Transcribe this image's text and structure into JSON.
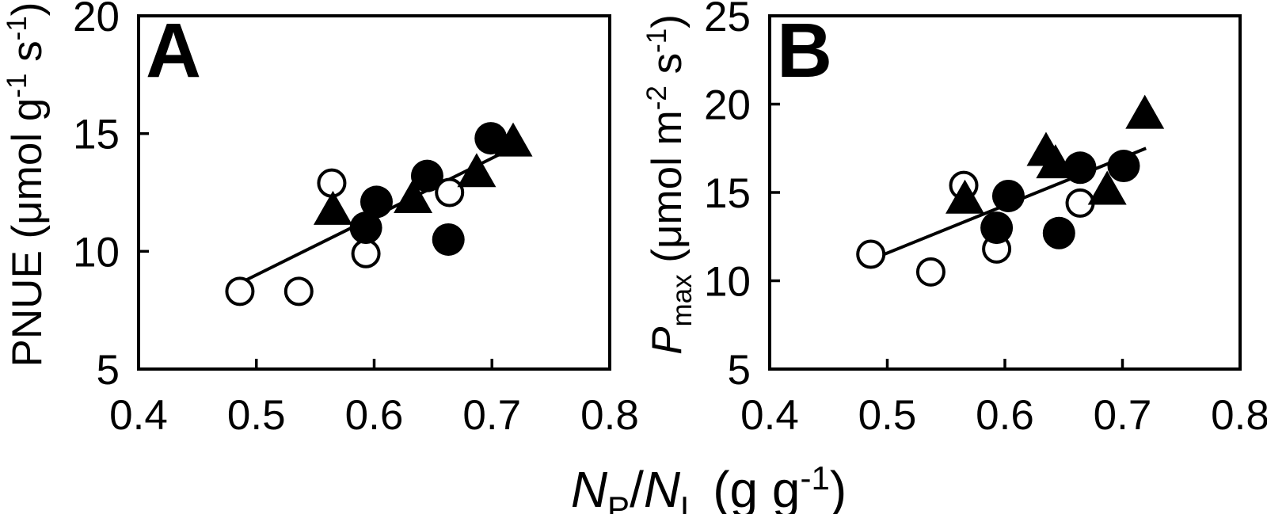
{
  "figure": {
    "colors": {
      "ink": "#000000",
      "background": "#ffffff"
    }
  },
  "xlabel": {
    "plain": "NP/NL (g g-1)",
    "parts": [
      {
        "t": "N",
        "style": "italic"
      },
      {
        "t": "P",
        "pos": "sub"
      },
      {
        "t": "/"
      },
      {
        "t": "N",
        "style": "italic"
      },
      {
        "t": "L",
        "pos": "sub"
      },
      {
        "t": " (g g"
      },
      {
        "t": "-1",
        "pos": "sup"
      },
      {
        "t": ")"
      }
    ]
  },
  "chart_data": [
    {
      "type": "scatter",
      "panel": "A",
      "label": "A",
      "ylabel": {
        "plain": "PNUE (μmol g-1 s-1)",
        "parts": [
          {
            "t": "PNUE (μmol g"
          },
          {
            "t": "-1",
            "pos": "sup"
          },
          {
            "t": " s"
          },
          {
            "t": "-1",
            "pos": "sup"
          },
          {
            "t": ")"
          }
        ]
      },
      "xlim": [
        0.4,
        0.8
      ],
      "ylim": [
        5,
        20
      ],
      "xticks": [
        0.4,
        0.5,
        0.6,
        0.7,
        0.8
      ],
      "xtick_labels": [
        "0.4",
        "0.5",
        "0.6",
        "0.7",
        "0.8"
      ],
      "yticks": [
        5,
        10,
        15,
        20
      ],
      "ytick_labels": [
        "5",
        "10",
        "15",
        "20"
      ],
      "grid": false,
      "legend": null,
      "series": [
        {
          "name": "open-circles",
          "marker": "circle-open",
          "points": [
            [
              0.486,
              8.3
            ],
            [
              0.536,
              8.3
            ],
            [
              0.564,
              12.9
            ],
            [
              0.593,
              9.9
            ],
            [
              0.664,
              12.5
            ]
          ]
        },
        {
          "name": "filled-circles",
          "marker": "circle-filled",
          "points": [
            [
              0.593,
              11.0
            ],
            [
              0.602,
              12.1
            ],
            [
              0.645,
              13.2
            ],
            [
              0.663,
              10.5
            ],
            [
              0.699,
              14.8
            ]
          ]
        },
        {
          "name": "filled-triangles",
          "marker": "triangle-filled",
          "points": [
            [
              0.565,
              11.8
            ],
            [
              0.633,
              12.3
            ],
            [
              0.687,
              13.4
            ],
            [
              0.718,
              14.7
            ]
          ]
        }
      ],
      "trendline": {
        "x1": 0.488,
        "y1": 8.7,
        "x2": 0.722,
        "y2": 14.5
      }
    },
    {
      "type": "scatter",
      "panel": "B",
      "label": "B",
      "ylabel": {
        "plain": "Pmax (μmol m-2 s-1)",
        "parts": [
          {
            "t": "P",
            "style": "italic"
          },
          {
            "t": "max",
            "pos": "sub"
          },
          {
            "t": " (μmol m"
          },
          {
            "t": "-2",
            "pos": "sup"
          },
          {
            "t": " s"
          },
          {
            "t": "-1",
            "pos": "sup"
          },
          {
            "t": ")"
          }
        ]
      },
      "xlim": [
        0.4,
        0.8
      ],
      "ylim": [
        5,
        25
      ],
      "xticks": [
        0.4,
        0.5,
        0.6,
        0.7,
        0.8
      ],
      "xtick_labels": [
        "0.4",
        "0.5",
        "0.6",
        "0.7",
        "0.8"
      ],
      "yticks": [
        5,
        10,
        15,
        20,
        25
      ],
      "ytick_labels": [
        "5",
        "10",
        "15",
        "20",
        "25"
      ],
      "grid": false,
      "legend": null,
      "series": [
        {
          "name": "open-circles",
          "marker": "circle-open",
          "points": [
            [
              0.486,
              11.5
            ],
            [
              0.537,
              10.5
            ],
            [
              0.565,
              15.4
            ],
            [
              0.593,
              11.8
            ],
            [
              0.664,
              14.4
            ]
          ]
        },
        {
          "name": "filled-circles",
          "marker": "circle-filled",
          "points": [
            [
              0.593,
              13.0
            ],
            [
              0.603,
              14.8
            ],
            [
              0.646,
              12.7
            ],
            [
              0.664,
              16.4
            ],
            [
              0.701,
              16.5
            ]
          ]
        },
        {
          "name": "filled-triangles",
          "marker": "triangle-filled",
          "points": [
            [
              0.566,
              14.7
            ],
            [
              0.635,
              17.4
            ],
            [
              0.643,
              16.7
            ],
            [
              0.687,
              15.2
            ],
            [
              0.719,
              19.5
            ]
          ]
        }
      ],
      "trendline": {
        "x1": 0.49,
        "y1": 11.3,
        "x2": 0.72,
        "y2": 17.5
      }
    }
  ]
}
